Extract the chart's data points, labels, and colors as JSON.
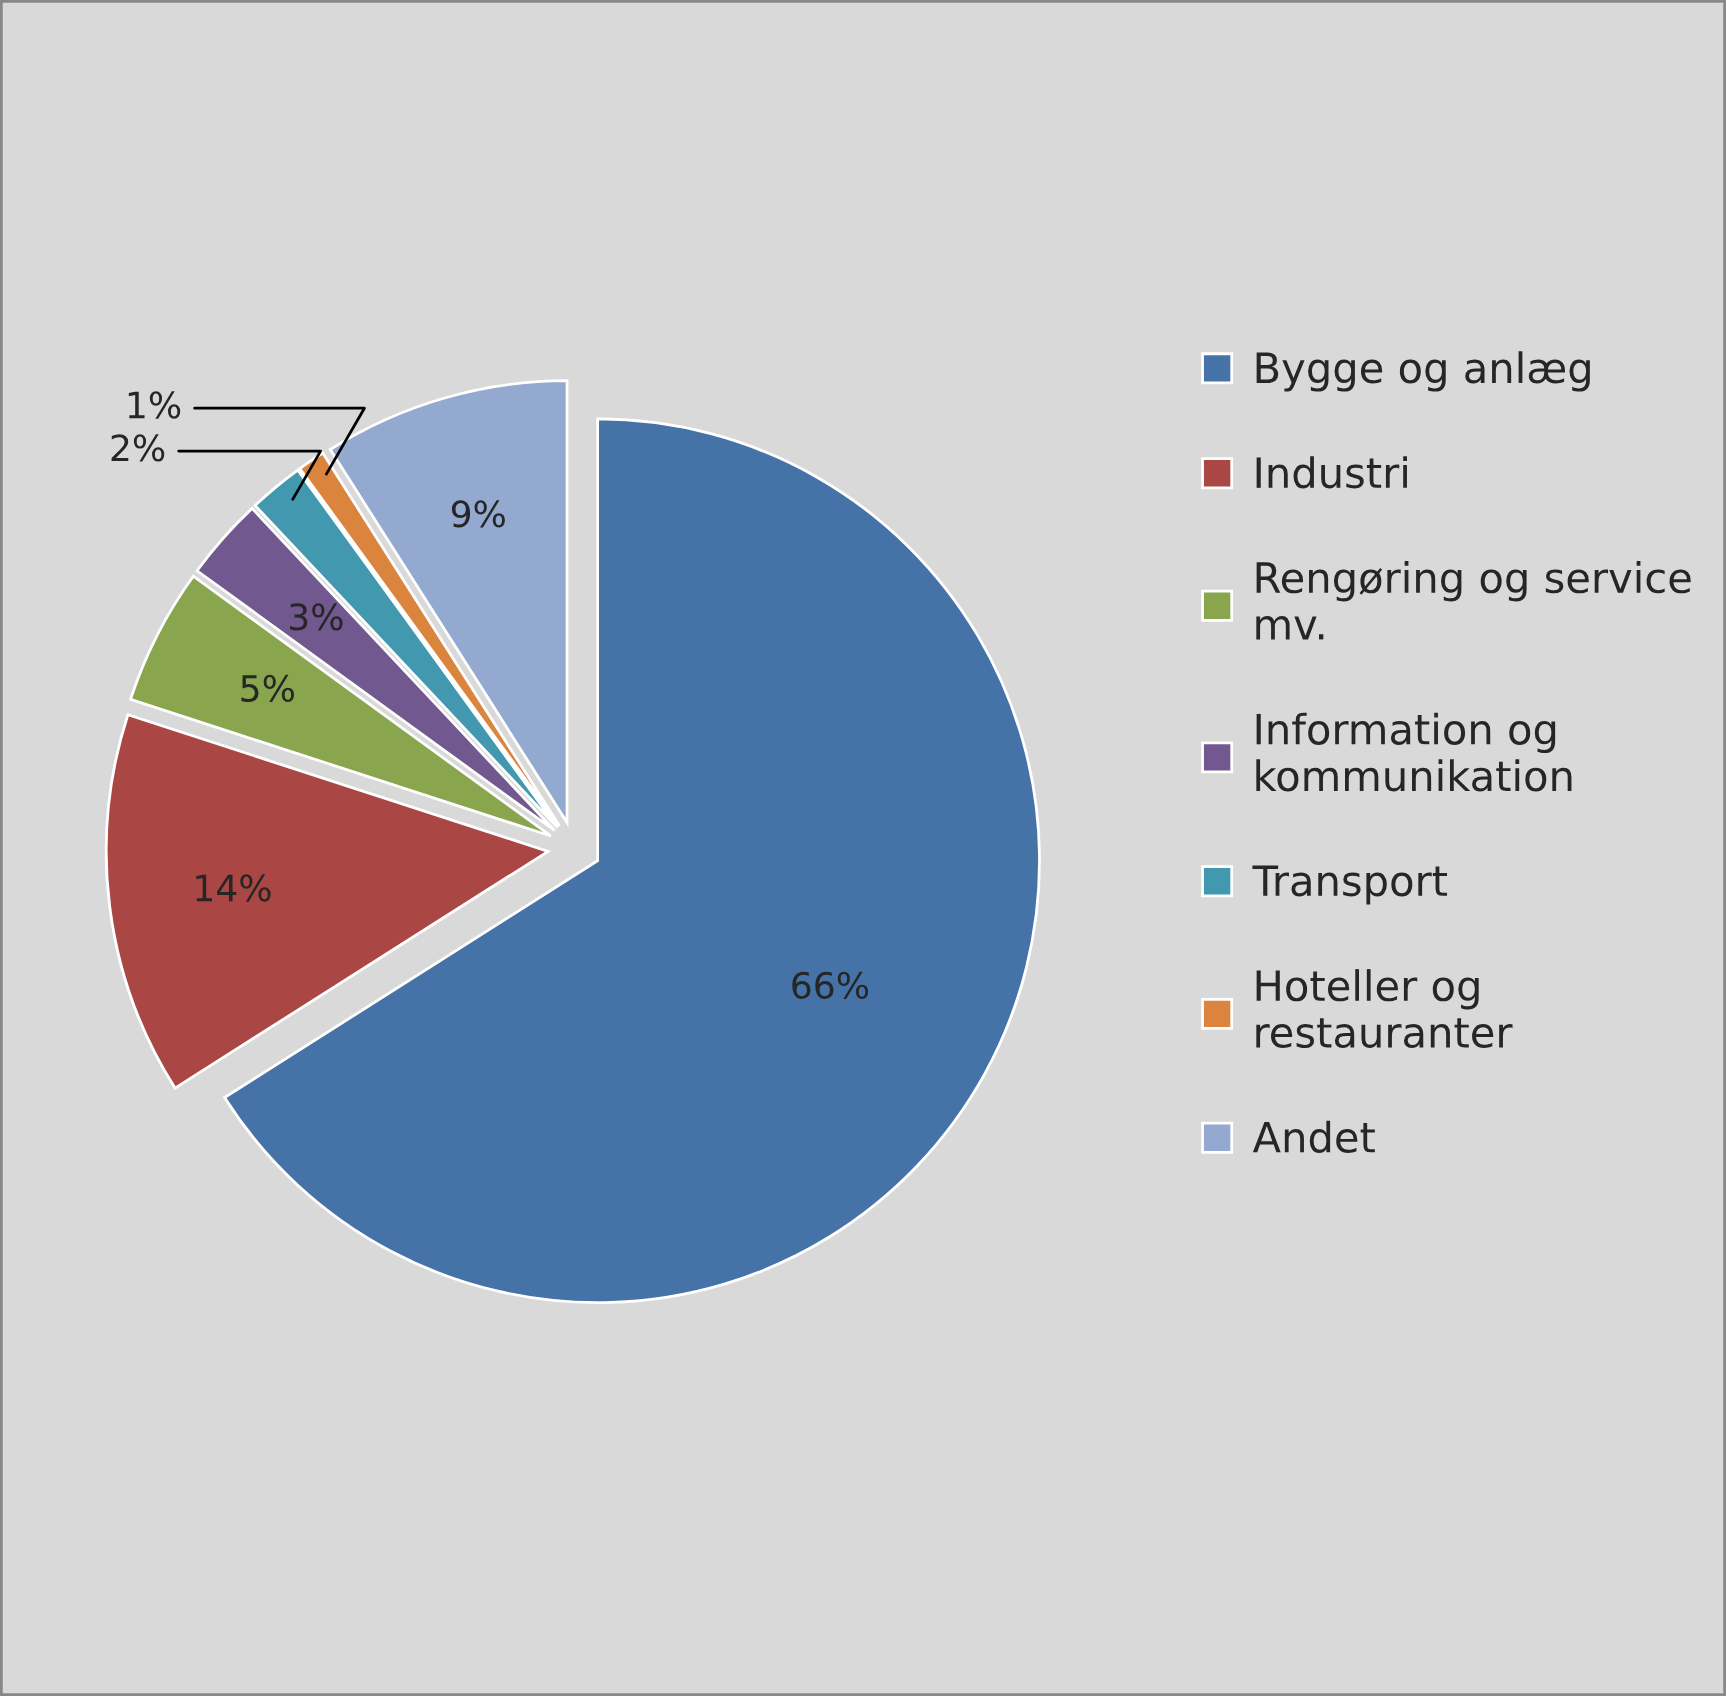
{
  "chart_data": {
    "type": "pie",
    "categories": [
      "Bygge og anlæg",
      "Industri",
      "Rengøring og service mv.",
      "Information og kommunikation",
      "Transport",
      "Hoteller og restauranter",
      "Andet"
    ],
    "values": [
      66,
      14,
      5,
      3,
      2,
      1,
      9
    ],
    "value_labels": [
      "66%",
      "14%",
      "5%",
      "3%",
      "2%",
      "1%",
      "9%"
    ],
    "colors": [
      "#4572a7",
      "#aa4643",
      "#89a54e",
      "#71588f",
      "#4198af",
      "#db843d",
      "#93a9cf"
    ],
    "legend": "right"
  }
}
